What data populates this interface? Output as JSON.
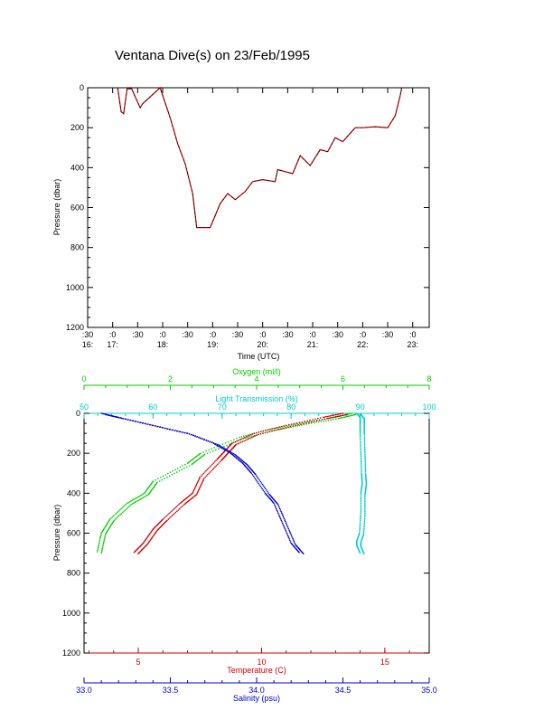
{
  "title": "Ventana Dive(s) on 23/Feb/1995",
  "chart_data": [
    {
      "type": "line",
      "xlabel": "Time (UTC)",
      "ylabel": "Pressure (dbar)",
      "ylim": [
        0,
        1200
      ],
      "y_inverted": true,
      "y_ticks": [
        "0",
        "200",
        "400",
        "600",
        "800",
        "1000",
        "1200"
      ],
      "x_range_hours": [
        16.5,
        23.33
      ],
      "x_ticks_top": [
        ":30",
        ":0",
        ":30",
        ":0",
        ":30",
        ":0",
        ":30",
        ":0",
        ":30",
        ":0",
        ":30",
        ":0",
        ":30",
        ":0"
      ],
      "x_ticks_bottom": [
        "16:",
        "17:",
        "",
        "18:",
        "",
        "19:",
        "",
        "20:",
        "",
        "21:",
        "",
        "22:",
        "",
        "23:"
      ],
      "series": [
        {
          "color": "#cc0000",
          "x": [
            17.1,
            17.17,
            17.22,
            17.29,
            17.38,
            17.55,
            17.6,
            17.95,
            18.15,
            18.3,
            18.45,
            18.6,
            18.68,
            18.95,
            19.15,
            19.3,
            19.45,
            19.65,
            19.8,
            20.0,
            20.25,
            20.3,
            20.6,
            20.75,
            20.95,
            21.15,
            21.3,
            21.45,
            21.6,
            21.85,
            22.0,
            22.25,
            22.5,
            22.65,
            22.75,
            22.78
          ],
          "y": [
            0,
            120,
            130,
            5,
            5,
            100,
            80,
            0,
            150,
            280,
            380,
            530,
            700,
            700,
            580,
            530,
            560,
            520,
            470,
            460,
            470,
            410,
            430,
            340,
            390,
            310,
            320,
            250,
            270,
            200,
            200,
            195,
            200,
            140,
            40,
            0
          ]
        }
      ]
    },
    {
      "type": "scatter",
      "ylabel": "Pressure (dbar)",
      "ylim": [
        0,
        1200
      ],
      "y_inverted": true,
      "y_ticks": [
        "0",
        "200",
        "400",
        "600",
        "800",
        "1000",
        "1200"
      ],
      "axes": {
        "oxygen": {
          "label": "Oxygen (ml/l)",
          "range": [
            0,
            8
          ],
          "ticks": [
            "0",
            "2",
            "4",
            "6",
            "8"
          ],
          "color": "#00cc00"
        },
        "light_transmission": {
          "label": "Light Transmission (%)",
          "range": [
            50,
            100
          ],
          "ticks": [
            "50",
            "60",
            "70",
            "80",
            "90",
            "100"
          ],
          "color": "#00cccc"
        },
        "temperature": {
          "label": "Temperature (C)",
          "range": [
            2.8,
            16.8
          ],
          "ticks": [
            "5",
            "10",
            "15"
          ],
          "color": "#cc0000"
        },
        "salinity": {
          "label": "Salinity (psu)",
          "range": [
            33.0,
            35.0
          ],
          "ticks": [
            "33.0",
            "33.5",
            "34.0",
            "34.5",
            "35.0"
          ],
          "color": "#0000cc"
        }
      },
      "series": [
        {
          "name": "Oxygen (ml/l)",
          "color": "#00cc00",
          "x": [
            6.2,
            5.8,
            5.0,
            4.3,
            3.6,
            2.7,
            2.4,
            1.6,
            1.4,
            1.0,
            0.6,
            0.4,
            0.3
          ],
          "y": [
            0,
            20,
            50,
            80,
            120,
            200,
            250,
            340,
            400,
            450,
            530,
            600,
            700
          ]
        },
        {
          "name": "Light Transmission (%)",
          "color": "#00cccc",
          "x": [
            89.5,
            90.0,
            90.0,
            90.0,
            90.1,
            90.2,
            90.3,
            90.1,
            90.1,
            89.9,
            89.5,
            89.5,
            90.0
          ],
          "y": [
            0,
            20,
            50,
            100,
            200,
            300,
            350,
            400,
            500,
            600,
            640,
            660,
            700
          ]
        },
        {
          "name": "Temperature (C)",
          "color": "#cc0000",
          "x": [
            13.3,
            12.5,
            11.0,
            9.7,
            8.8,
            8.5,
            8.2,
            7.5,
            7.2,
            6.7,
            6.0,
            5.6,
            5.2,
            4.8
          ],
          "y": [
            0,
            20,
            60,
            100,
            150,
            190,
            230,
            320,
            400,
            450,
            530,
            580,
            650,
            700
          ]
        },
        {
          "name": "Salinity (psu)",
          "color": "#0000cc",
          "x": [
            33.1,
            33.2,
            33.4,
            33.6,
            33.75,
            33.85,
            33.92,
            33.97,
            34.05,
            34.1,
            34.15,
            34.2,
            34.25
          ],
          "y": [
            0,
            20,
            60,
            100,
            150,
            200,
            250,
            300,
            400,
            450,
            550,
            650,
            700
          ]
        }
      ]
    }
  ]
}
